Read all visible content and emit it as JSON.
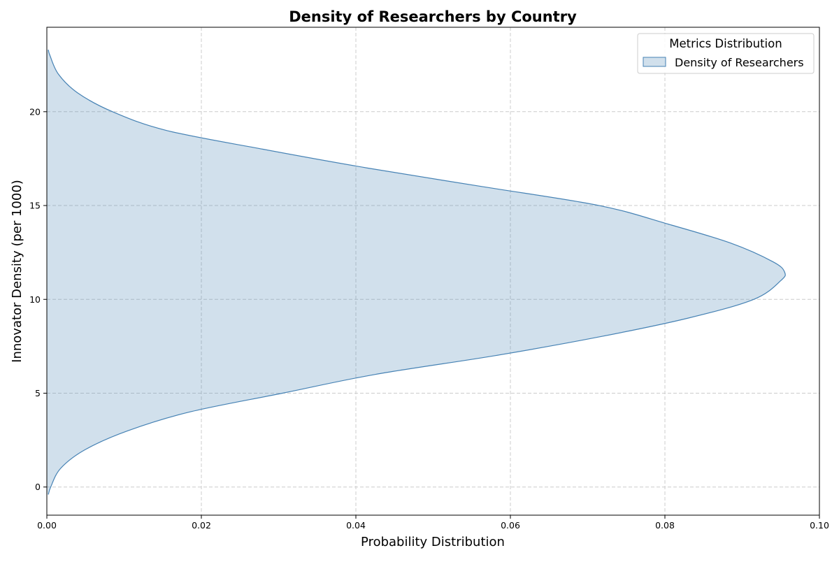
{
  "chart_data": {
    "type": "area",
    "orientation": "horizontal-density",
    "title": "Density of Researchers by Country",
    "xlabel": "Probability Distribution",
    "ylabel": "Innovator Density (per 1000)",
    "xlim": [
      0.0,
      0.1
    ],
    "ylim": [
      -1.5,
      24.5
    ],
    "xticks": [
      0.0,
      0.02,
      0.04,
      0.06,
      0.08,
      0.1
    ],
    "xtick_labels": [
      "0.00",
      "0.02",
      "0.04",
      "0.06",
      "0.08",
      "0.10"
    ],
    "yticks": [
      0,
      5,
      10,
      15,
      20
    ],
    "ytick_labels": [
      "0",
      "5",
      "10",
      "15",
      "20"
    ],
    "grid": true,
    "legend": {
      "title": "Metrics Distribution",
      "placement": "top-right",
      "entries": [
        "Density of Researchers"
      ]
    },
    "series": [
      {
        "name": "Density of Researchers",
        "color": "#4682b4",
        "fill_color": "#4682b4",
        "fill_opacity": 0.25,
        "y": [
          -0.4,
          0.0,
          1.0,
          2.0,
          3.0,
          4.0,
          5.0,
          6.0,
          7.0,
          8.0,
          9.0,
          10.0,
          11.0,
          11.45,
          12.0,
          13.0,
          14.0,
          15.0,
          16.0,
          17.0,
          18.0,
          19.0,
          20.0,
          21.0,
          22.0,
          23.0,
          23.3
        ],
        "density": [
          0.0002,
          0.0005,
          0.0018,
          0.005,
          0.0105,
          0.0185,
          0.0305,
          0.0425,
          0.058,
          0.0715,
          0.083,
          0.0915,
          0.095,
          0.0955,
          0.094,
          0.0885,
          0.0805,
          0.0715,
          0.0565,
          0.0415,
          0.028,
          0.0155,
          0.0085,
          0.004,
          0.0015,
          0.0004,
          0.0002
        ]
      }
    ]
  }
}
